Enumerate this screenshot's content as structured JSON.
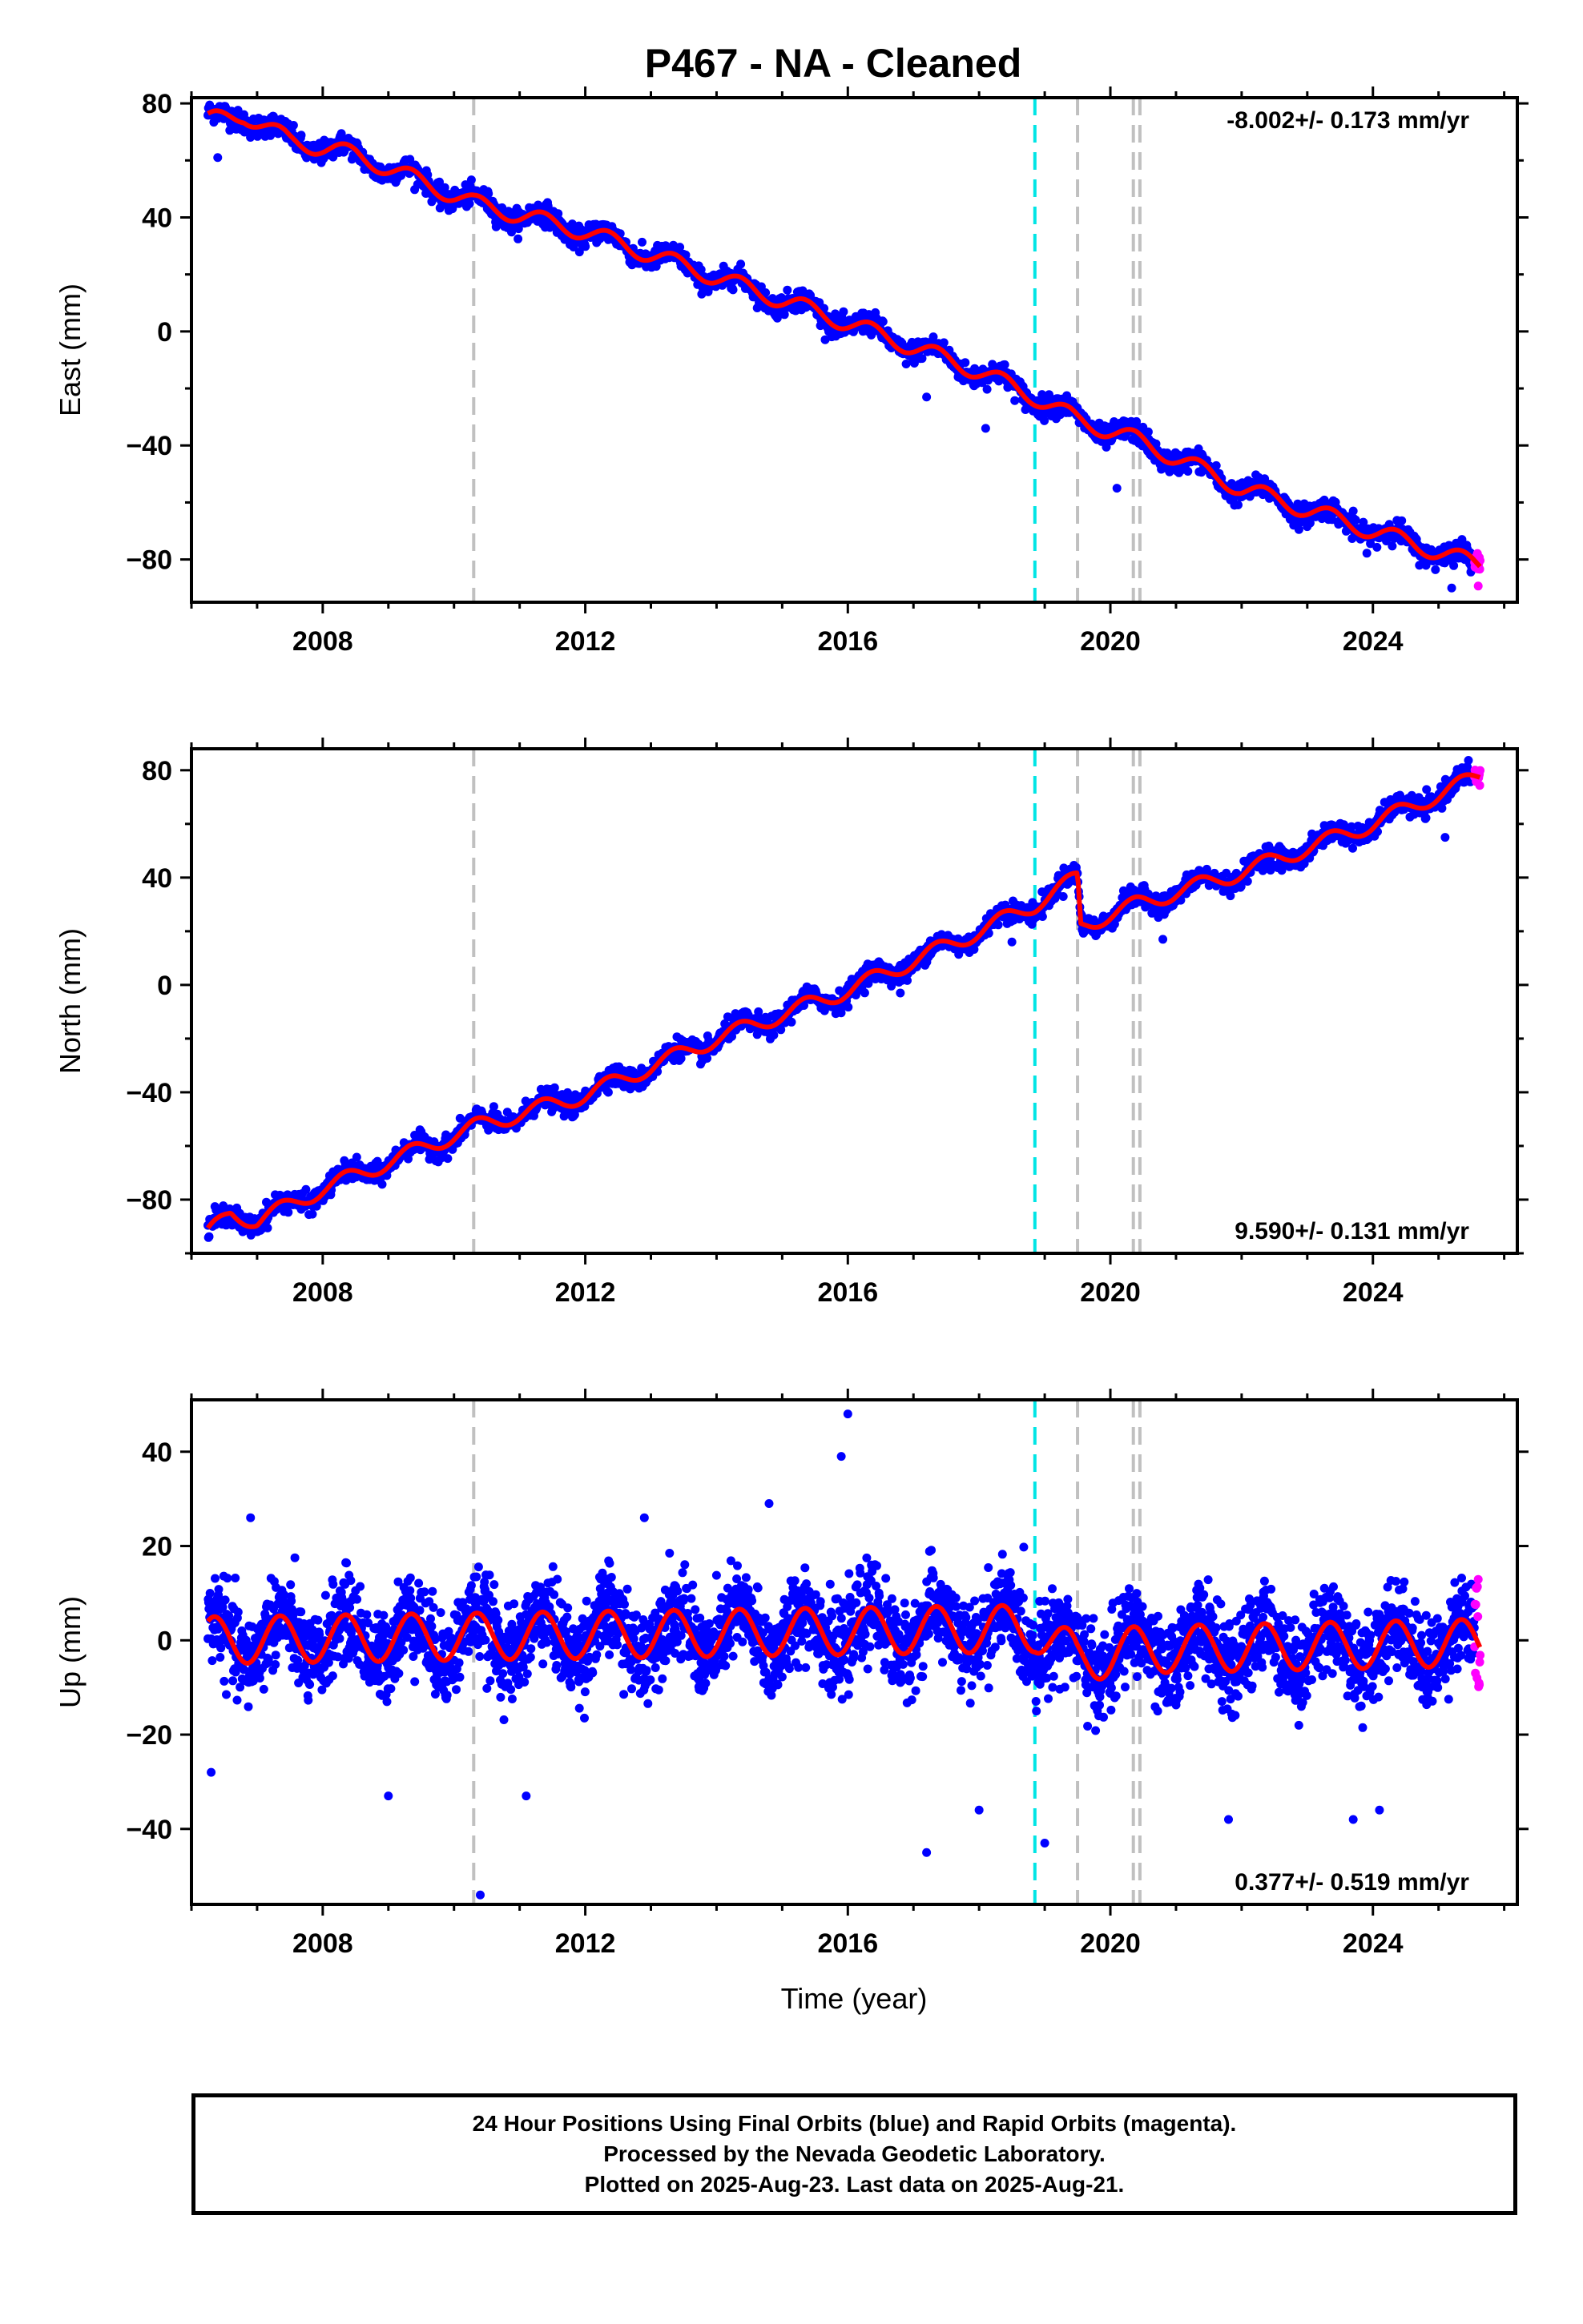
{
  "title": "P467  - NA - Cleaned",
  "x_axis_label": "Time (year)",
  "caption": [
    "24 Hour Positions Using Final Orbits (blue) and Rapid Orbits (magenta).",
    "Processed by the Nevada Geodetic Laboratory.",
    "Plotted on 2025-Aug-23. Last data on 2025-Aug-21."
  ],
  "colors": {
    "final_orbits": "#0000ff",
    "rapid_orbits": "#ff00ff",
    "model_fit": "#ff0000",
    "equipment_change": "#c0c0c0",
    "earthquake": "#00e5e5"
  },
  "chart_data": [
    {
      "type": "scatter",
      "component": "east",
      "ylabel": "East (mm)",
      "xlim": [
        2006.0,
        2026.2
      ],
      "ylim": [
        -95,
        82
      ],
      "x_ticks": [
        2008,
        2012,
        2016,
        2020,
        2024
      ],
      "y_ticks": [
        -80,
        -40,
        0,
        40,
        80
      ],
      "rate_text": "-8.002+/- 0.173 mm/yr",
      "rate_position": "top-right",
      "grid": false,
      "data_start": 2006.25,
      "data_end": 2025.64,
      "rapid_orbits_start": 2025.55,
      "model_fit": {
        "x": [
          2006.25,
          2006.8,
          2007.5,
          2008.5,
          2010.3,
          2012.0,
          2014.0,
          2016.0,
          2018.0,
          2018.85,
          2019.5,
          2020.4,
          2022.0,
          2024.0,
          2025.64
        ],
        "y": [
          74,
          76,
          67,
          62,
          45,
          35,
          19,
          3,
          -14,
          -23,
          -31,
          -38,
          -55,
          -70,
          -82
        ],
        "seasonal_amplitude_mm": 3
      },
      "vertical_lines": [
        {
          "x": 2010.3,
          "kind": "equipment_change"
        },
        {
          "x": 2018.85,
          "kind": "earthquake"
        },
        {
          "x": 2019.5,
          "kind": "equipment_change"
        },
        {
          "x": 2020.35,
          "kind": "equipment_change"
        },
        {
          "x": 2020.45,
          "kind": "equipment_change"
        }
      ],
      "outliers": [
        {
          "x": 2017.2,
          "y": -23
        },
        {
          "x": 2018.1,
          "y": -34
        },
        {
          "x": 2020.1,
          "y": -55
        },
        {
          "x": 2023.7,
          "y": -63
        },
        {
          "x": 2025.2,
          "y": -90
        },
        {
          "x": 2006.4,
          "y": 61
        }
      ]
    },
    {
      "type": "scatter",
      "component": "north",
      "ylabel": "North (mm)",
      "xlim": [
        2006.0,
        2026.2
      ],
      "ylim": [
        -100,
        88
      ],
      "x_ticks": [
        2008,
        2012,
        2016,
        2020,
        2024
      ],
      "y_ticks": [
        -80,
        -40,
        0,
        40,
        80
      ],
      "rate_text": "9.590+/- 0.131 mm/yr",
      "rate_position": "bottom-right",
      "grid": false,
      "data_start": 2006.25,
      "data_end": 2025.64,
      "rapid_orbits_start": 2025.55,
      "model_fit": {
        "x": [
          2006.25,
          2006.6,
          2007.0,
          2008.0,
          2010.3,
          2012.0,
          2014.0,
          2016.0,
          2018.0,
          2018.85,
          2019.5,
          2019.55,
          2020.4,
          2022.0,
          2024.0,
          2025.64
        ],
        "y": [
          -93,
          -85,
          -88,
          -76,
          -53,
          -41,
          -20,
          -2,
          20,
          30,
          40,
          22,
          30,
          42,
          60,
          78
        ],
        "seasonal_amplitude_mm": 3
      },
      "vertical_lines": [
        {
          "x": 2010.3,
          "kind": "equipment_change"
        },
        {
          "x": 2018.85,
          "kind": "earthquake"
        },
        {
          "x": 2019.5,
          "kind": "equipment_change"
        },
        {
          "x": 2020.35,
          "kind": "equipment_change"
        },
        {
          "x": 2020.45,
          "kind": "equipment_change"
        }
      ],
      "outliers": [
        {
          "x": 2014.5,
          "y": -14
        },
        {
          "x": 2016.8,
          "y": -3
        },
        {
          "x": 2018.5,
          "y": 16
        },
        {
          "x": 2020.8,
          "y": 17
        },
        {
          "x": 2025.1,
          "y": 55
        }
      ]
    },
    {
      "type": "scatter",
      "component": "up",
      "ylabel": "Up (mm)",
      "xlim": [
        2006.0,
        2026.2
      ],
      "ylim": [
        -56,
        51
      ],
      "x_ticks": [
        2008,
        2012,
        2016,
        2020,
        2024
      ],
      "y_ticks": [
        -40,
        -20,
        0,
        20,
        40
      ],
      "rate_text": "0.377+/- 0.519 mm/yr",
      "rate_position": "bottom-right",
      "grid": false,
      "data_start": 2006.25,
      "data_end": 2025.64,
      "rapid_orbits_start": 2025.55,
      "model_fit": {
        "x": [
          2006.25,
          2018.85,
          2019.5,
          2020.4,
          2025.64
        ],
        "y": [
          0,
          2.5,
          -4,
          -2,
          -0.5
        ],
        "seasonal_amplitude_mm": 5
      },
      "vertical_lines": [
        {
          "x": 2010.3,
          "kind": "equipment_change"
        },
        {
          "x": 2018.85,
          "kind": "earthquake"
        },
        {
          "x": 2019.5,
          "kind": "equipment_change"
        },
        {
          "x": 2020.35,
          "kind": "equipment_change"
        },
        {
          "x": 2020.45,
          "kind": "equipment_change"
        }
      ],
      "outliers": [
        {
          "x": 2016.0,
          "y": 48
        },
        {
          "x": 2015.9,
          "y": 39
        },
        {
          "x": 2010.4,
          "y": -54
        },
        {
          "x": 2019.0,
          "y": -43
        },
        {
          "x": 2017.2,
          "y": -45
        },
        {
          "x": 2009.0,
          "y": -33
        },
        {
          "x": 2011.1,
          "y": -33
        },
        {
          "x": 2014.8,
          "y": 29
        },
        {
          "x": 2012.9,
          "y": 26
        },
        {
          "x": 2006.9,
          "y": 26
        },
        {
          "x": 2006.3,
          "y": -28
        },
        {
          "x": 2021.8,
          "y": -38
        },
        {
          "x": 2023.7,
          "y": -38
        },
        {
          "x": 2024.1,
          "y": -36
        },
        {
          "x": 2018.0,
          "y": -36
        }
      ]
    }
  ]
}
